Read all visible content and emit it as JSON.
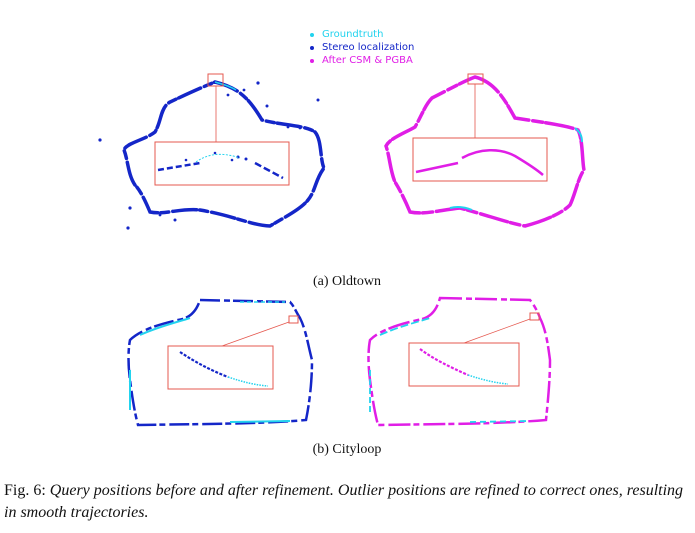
{
  "legend": {
    "items": [
      {
        "label": "Groundtruth",
        "color": "#22d3ee"
      },
      {
        "label": "Stereo localization",
        "color": "#1426c8"
      },
      {
        "label": "After CSM & PGBA",
        "color": "#e01ee6"
      }
    ]
  },
  "subfigures": [
    {
      "caption": "(a) Oldtown"
    },
    {
      "caption": "(b) Cityloop"
    }
  ],
  "caption": {
    "label": "Fig. 6:",
    "text": "Query positions before and after refinement. Outlier positions are refined to correct ones, resulting in smooth trajectories."
  },
  "colors": {
    "inset_box": "#e5584f",
    "groundtruth": "#22d3ee",
    "stereo": "#1426c8",
    "refined": "#e01ee6"
  }
}
